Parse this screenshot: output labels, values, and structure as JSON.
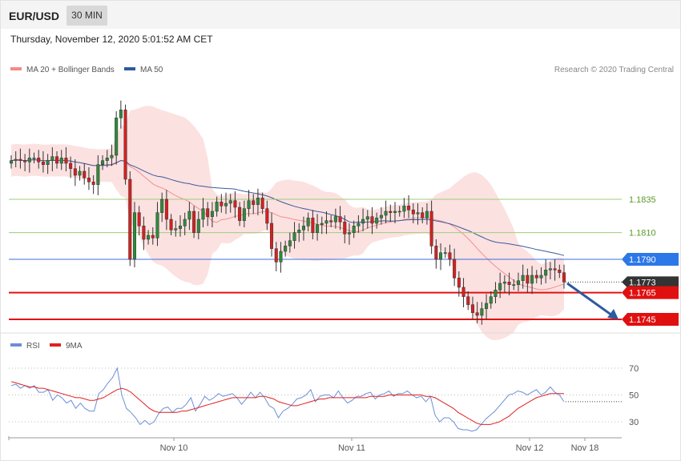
{
  "header": {
    "symbol": "EUR/USD",
    "timeframe": "30 MIN",
    "datetime": "Thursday, November 12, 2020 5:01:52 AM CET"
  },
  "colors": {
    "bull_candle": "#2f8a3a",
    "bear_candle": "#d62020",
    "bollinger_fill": "#fcdede",
    "ma20": "#f0918f",
    "ma50": "#3b5b9b",
    "resistance_line": "#9ccd7a",
    "pivot_line": "#3b6fdc",
    "support_line": "#e01010",
    "current_price_bg": "#333333",
    "arrow": "#2e5a9e",
    "rsi": "#6b8fd8",
    "rsi_ma": "#e02020"
  },
  "chart_data": [
    {
      "type": "candlestick",
      "title": "EUR/USD",
      "legend": [
        {
          "name": "MA 20 + Bollinger Bands",
          "color": "#f28a8a"
        },
        {
          "name": "MA 50",
          "color": "#2e5a9e"
        }
      ],
      "legend_placement": "top-left",
      "credit": "Research © 2020 Trading Central",
      "x_ticks": [
        "Nov 10",
        "Nov 11",
        "Nov 12",
        "Nov 18"
      ],
      "ylim": [
        1.1738,
        1.1935
      ],
      "levels": [
        {
          "value": 1.1835,
          "label": "1.1835",
          "kind": "resistance"
        },
        {
          "value": 1.181,
          "label": "1.1810",
          "kind": "resistance"
        },
        {
          "value": 1.179,
          "label": "1.1790",
          "kind": "pivot"
        },
        {
          "value": 1.1773,
          "label": "1.1773",
          "kind": "current"
        },
        {
          "value": 1.1765,
          "label": "1.1765",
          "kind": "support"
        },
        {
          "value": 1.1745,
          "label": "1.1745",
          "kind": "support"
        }
      ],
      "target_arrow": {
        "from": 1.1772,
        "to": 1.1745
      },
      "close_series": [
        1.1864,
        1.1865,
        1.1864,
        1.1863,
        1.1866,
        1.1866,
        1.1863,
        1.1861,
        1.1864,
        1.1867,
        1.1862,
        1.1866,
        1.1862,
        1.1858,
        1.1853,
        1.1856,
        1.1851,
        1.1848,
        1.1846,
        1.1861,
        1.1864,
        1.1866,
        1.1868,
        1.1896,
        1.1902,
        1.185,
        1.179,
        1.1825,
        1.1815,
        1.1805,
        1.1808,
        1.1806,
        1.1825,
        1.1835,
        1.182,
        1.1812,
        1.1813,
        1.1815,
        1.182,
        1.1826,
        1.181,
        1.182,
        1.1828,
        1.1822,
        1.1826,
        1.1833,
        1.183,
        1.1832,
        1.1834,
        1.1829,
        1.1819,
        1.1828,
        1.1834,
        1.1831,
        1.1836,
        1.1828,
        1.1817,
        1.1798,
        1.1788,
        1.1796,
        1.18,
        1.1804,
        1.181,
        1.1812,
        1.1815,
        1.1821,
        1.181,
        1.1816,
        1.1817,
        1.1819,
        1.1818,
        1.1822,
        1.1818,
        1.1809,
        1.181,
        1.1815,
        1.1817,
        1.182,
        1.1822,
        1.1817,
        1.1821,
        1.1823,
        1.1826,
        1.1825,
        1.1826,
        1.1826,
        1.183,
        1.1827,
        1.1824,
        1.1825,
        1.1821,
        1.1826,
        1.18,
        1.179,
        1.1795,
        1.1795,
        1.179,
        1.1776,
        1.1769,
        1.1762,
        1.1756,
        1.175,
        1.1748,
        1.1753,
        1.1757,
        1.1762,
        1.1767,
        1.1772,
        1.1773,
        1.1771,
        1.1771,
        1.1774,
        1.1778,
        1.1772,
        1.1778,
        1.1776,
        1.1778,
        1.1782,
        1.1783,
        1.1782,
        1.178,
        1.1773
      ]
    },
    {
      "type": "line",
      "title": "RSI",
      "legend": [
        {
          "name": "RSI",
          "color": "#6b8fd8"
        },
        {
          "name": "9MA",
          "color": "#e02020"
        }
      ],
      "legend_placement": "top-left",
      "ylim": [
        19,
        81
      ],
      "y_ticks": [
        70,
        50,
        30
      ],
      "series": [
        {
          "name": "RSI",
          "values": [
            57,
            58,
            55,
            57,
            55,
            57,
            52,
            52,
            54,
            46,
            50,
            48,
            44,
            46,
            40,
            44,
            40,
            38,
            38,
            51,
            54,
            59,
            63,
            70,
            50,
            40,
            37,
            33,
            28,
            31,
            28,
            30,
            36,
            40,
            41,
            37,
            40,
            40,
            43,
            48,
            38,
            43,
            49,
            46,
            48,
            51,
            49,
            50,
            51,
            48,
            43,
            47,
            52,
            48,
            52,
            48,
            42,
            40,
            33,
            38,
            40,
            43,
            47,
            48,
            50,
            54,
            45,
            49,
            50,
            50,
            48,
            53,
            48,
            44,
            46,
            49,
            49,
            51,
            52,
            47,
            50,
            51,
            53,
            49,
            51,
            51,
            53,
            50,
            48,
            49,
            45,
            49,
            35,
            30,
            33,
            33,
            30,
            25,
            24,
            24,
            23,
            24,
            28,
            32,
            35,
            38,
            42,
            46,
            50,
            51,
            53,
            52,
            50,
            52,
            54,
            50,
            52,
            56,
            52,
            50,
            45
          ]
        },
        {
          "name": "9MA",
          "values": [
            60,
            59,
            58,
            57,
            56,
            56,
            55,
            55,
            54,
            53,
            52,
            51,
            50,
            49,
            48,
            48,
            47,
            46,
            46,
            47,
            48,
            50,
            52,
            54,
            55,
            54,
            52,
            49,
            46,
            43,
            40,
            38,
            37,
            37,
            37,
            37,
            37,
            38,
            38,
            39,
            40,
            41,
            42,
            43,
            44,
            45,
            46,
            47,
            48,
            48,
            48,
            48,
            48,
            48,
            49,
            49,
            48,
            47,
            45,
            44,
            43,
            42,
            42,
            43,
            44,
            45,
            46,
            47,
            47,
            48,
            48,
            48,
            48,
            48,
            48,
            48,
            48,
            48,
            49,
            49,
            49,
            49,
            50,
            50,
            50,
            50,
            50,
            50,
            50,
            50,
            49,
            49,
            48,
            46,
            44,
            42,
            40,
            37,
            35,
            33,
            31,
            29,
            28,
            28,
            28,
            29,
            30,
            32,
            34,
            37,
            40,
            42,
            44,
            46,
            48,
            49,
            50,
            51,
            51,
            51,
            51
          ]
        }
      ]
    }
  ]
}
